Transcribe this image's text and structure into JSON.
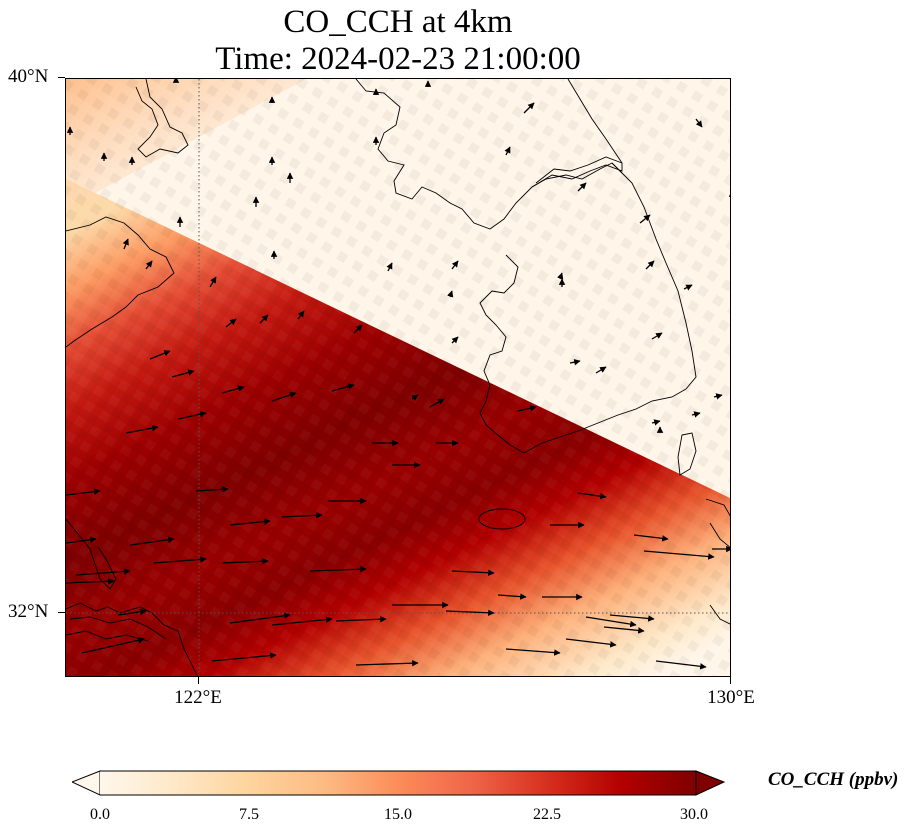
{
  "title": {
    "line1": "CO_CCH at 4km",
    "line2": "Time: 2024-02-23 21:00:00"
  },
  "axes": {
    "lat_labels": [
      "40°N",
      "32°N"
    ],
    "lon_labels": [
      "122°E",
      "130°E"
    ],
    "lat_range": [
      31,
      40
    ],
    "lon_range": [
      120,
      130
    ],
    "gridlines": {
      "lon": 122,
      "lat": 32,
      "style": "dotted"
    }
  },
  "colorbar": {
    "label": "CO_CCH (ppbv)",
    "ticks": [
      "0.0",
      "7.5",
      "15.0",
      "22.5",
      "30.0"
    ],
    "range": [
      0,
      30
    ],
    "extend": "both",
    "cmap": "OrRd",
    "colors": [
      "#fff7ec",
      "#fee8c8",
      "#fdd49e",
      "#fdbb84",
      "#fc8d59",
      "#ef6548",
      "#d7301f",
      "#b30000",
      "#7f0000"
    ]
  },
  "chart_data": {
    "type": "heatmap",
    "field": "CO_CCH",
    "level": "4km",
    "time": "2024-02-23 21:00:00",
    "units": "ppbv",
    "pattern": "band of elevated CO oriented northwest-southeast, maxima ~30 ppbv over 32.5–35°N west of 124°E, low values (<3 ppbv) over Korea and north-east",
    "wind_vectors": "westerly to west-southwesterly in the south, southerly to southwesterly in the north"
  }
}
